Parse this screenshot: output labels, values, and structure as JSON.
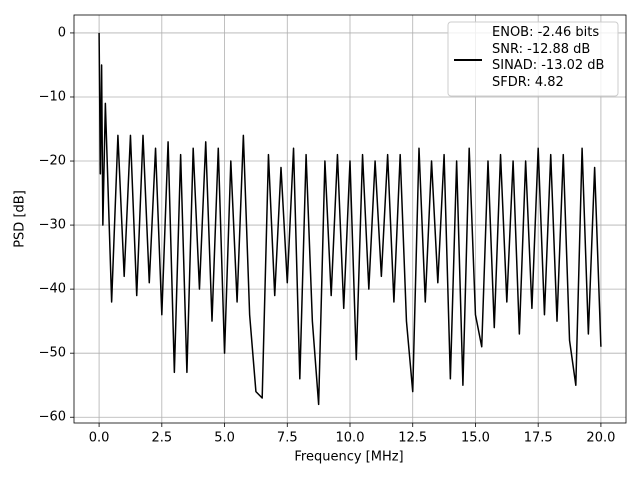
{
  "chart_data": {
    "type": "line",
    "xlabel": "Frequency [MHz]",
    "ylabel": "PSD [dB]",
    "x": [
      0,
      0.05,
      0.1,
      0.15,
      0.25,
      0.5,
      0.75,
      1.0,
      1.25,
      1.5,
      1.75,
      2.0,
      2.25,
      2.5,
      2.75,
      3.0,
      3.25,
      3.5,
      3.75,
      4.0,
      4.25,
      4.5,
      4.75,
      5.0,
      5.25,
      5.5,
      5.75,
      6.0,
      6.25,
      6.5,
      6.75,
      7.0,
      7.25,
      7.5,
      7.75,
      8.0,
      8.25,
      8.5,
      8.75,
      9.0,
      9.25,
      9.5,
      9.75,
      10.0,
      10.25,
      10.5,
      10.75,
      11.0,
      11.25,
      11.5,
      11.75,
      12.0,
      12.25,
      12.5,
      12.75,
      13.0,
      13.25,
      13.5,
      13.75,
      14.0,
      14.25,
      14.5,
      14.75,
      15.0,
      15.25,
      15.5,
      15.75,
      16.0,
      16.25,
      16.5,
      16.75,
      17.0,
      17.25,
      17.5,
      17.75,
      18.0,
      18.25,
      18.5,
      18.75,
      19.0,
      19.25,
      19.5,
      19.75,
      20.0
    ],
    "series": [
      {
        "name": "ENOB: -2.46 bits\nSNR: -12.88 dB\nSINAD: -13.02 dB\nSFDR: 4.82",
        "color": "#000000",
        "values": [
          0,
          -22,
          -5,
          -30,
          -11,
          -42,
          -16,
          -38,
          -16,
          -41,
          -16,
          -39,
          -18,
          -44,
          -17,
          -53,
          -19,
          -53,
          -18,
          -40,
          -17,
          -45,
          -18,
          -50,
          -20,
          -42,
          -16,
          -44,
          -56,
          -57,
          -19,
          -41,
          -21,
          -39,
          -18,
          -54,
          -19,
          -45,
          -58,
          -20,
          -41,
          -19,
          -43,
          -20,
          -51,
          -19,
          -40,
          -20,
          -38,
          -19,
          -42,
          -19,
          -45,
          -56,
          -18,
          -42,
          -20,
          -39,
          -19,
          -54,
          -20,
          -55,
          -18,
          -44,
          -49,
          -20,
          -46,
          -19,
          -42,
          -20,
          -47,
          -20,
          -43,
          -18,
          -44,
          -19,
          -45,
          -19,
          -48,
          -55,
          -18,
          -47,
          -21,
          -49
        ]
      }
    ],
    "xlim": [
      -1.0,
      21.0
    ],
    "xticks": [
      {
        "value": 0,
        "label": "0.0"
      },
      2.5,
      {
        "value": 5,
        "label": "5.0"
      },
      7.5,
      {
        "value": 10,
        "label": "10.0"
      },
      12.5,
      {
        "value": 15,
        "label": "15.0"
      },
      17.5,
      {
        "value": 20,
        "label": "20.0"
      }
    ],
    "ylim": [
      -60.9,
      2.8
    ],
    "yticks": [
      {
        "value": -60,
        "label": "−60"
      },
      {
        "value": -50,
        "label": "−50"
      },
      {
        "value": -40,
        "label": "−40"
      },
      {
        "value": -30,
        "label": "−30"
      },
      {
        "value": -20,
        "label": "−20"
      },
      {
        "value": -10,
        "label": "−10"
      },
      0
    ],
    "grid": true,
    "legend": "upper right"
  }
}
